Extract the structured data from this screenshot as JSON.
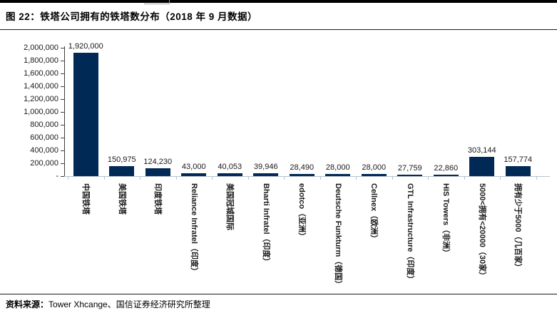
{
  "header": {
    "title": "图  22：铁塔公司拥有的铁塔数分布（2018 年 9 月数据）"
  },
  "footer": {
    "source_label": "资料来源：",
    "source_text": "Tower Xhcange、国信证券经济研究所整理"
  },
  "colors": {
    "bar": "#002a55",
    "rule": "#000000",
    "y_axis": "#3d3d3d",
    "x_axis": "#b9c2cd"
  },
  "chart_data": {
    "type": "bar",
    "title": "铁塔公司拥有的铁塔数分布（2018 年 9 月数据）",
    "categories": [
      "中国铁塔",
      "美国铁塔",
      "印度铁塔",
      "Reliance Infratel（印度）",
      "美国冠城国际",
      "Bharti Infratel（印度）",
      "edotco（亚洲）",
      "Deutsche Funkturm（德国）",
      "Cellnex（欧洲）",
      "GTL Infrastructure（印度）",
      "HIS Towers（非洲）",
      "5000<拥有<20000（30家）",
      "拥有少于5000（几百家）"
    ],
    "values": [
      1920000,
      150975,
      124230,
      43000,
      40053,
      39946,
      28490,
      28000,
      28000,
      27759,
      22860,
      303144,
      157774
    ],
    "value_labels": [
      "1,920,000",
      "150,975",
      "124,230",
      "43,000",
      "40,053",
      "39,946",
      "28,490",
      "28,000",
      "28,000",
      "27,759",
      "22,860",
      "303,144",
      "157,774"
    ],
    "xlabel": "",
    "ylabel": "",
    "ylim": [
      0,
      2000000
    ],
    "ytick_labels": [
      "2,000,000",
      "1,800,000",
      "1,600,000",
      "1,400,000",
      "1,200,000",
      "1,000,000",
      "800,000",
      "600,000",
      "400,000",
      "200,000",
      "-"
    ],
    "ytick_values": [
      2000000,
      1800000,
      1600000,
      1400000,
      1200000,
      1000000,
      800000,
      600000,
      400000,
      200000,
      0
    ],
    "grid": false,
    "legend": false
  }
}
